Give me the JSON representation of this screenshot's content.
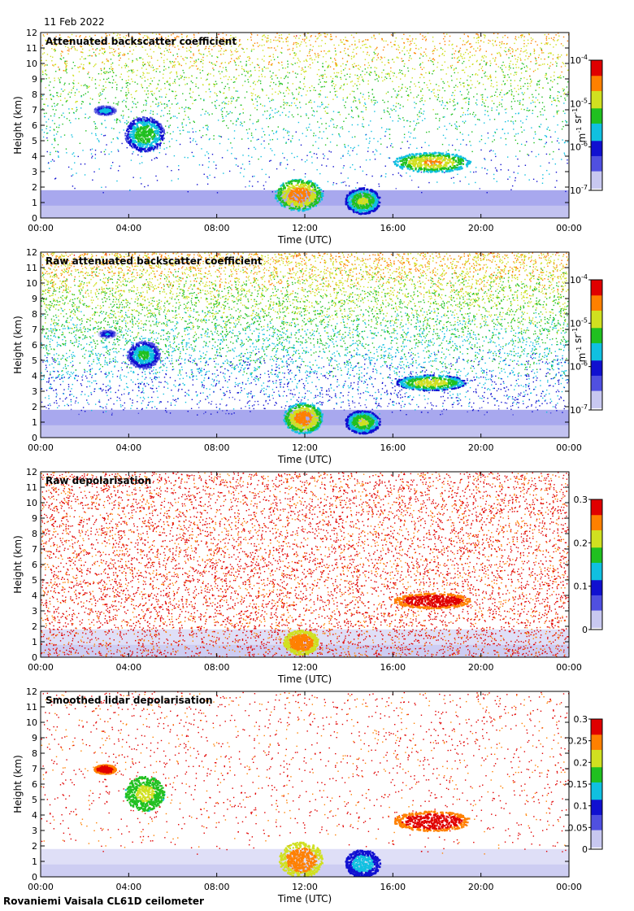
{
  "header": {
    "date": "11 Feb 2022"
  },
  "footer": {
    "site": "Rovaniemi Vaisala CL61D ceilometer"
  },
  "colors": {
    "colormap": [
      "#ffffff",
      "#c8c8f0",
      "#5050e0",
      "#1010d0",
      "#10c0e0",
      "#20c020",
      "#d0e020",
      "#ff8000",
      "#e00000",
      "#700070"
    ],
    "low_bg": "#d8d8e8",
    "depol_fill": "#800080"
  },
  "chart_data": [
    {
      "type": "heatmap",
      "title": "Attenuated backscatter coefficient",
      "xlabel": "Time (UTC)",
      "ylabel": "Height (km)",
      "x_ticks": [
        "00:00",
        "04:00",
        "08:00",
        "12:00",
        "16:00",
        "20:00",
        "00:00"
      ],
      "y_ticks": [
        "0",
        "1",
        "2",
        "3",
        "4",
        "5",
        "6",
        "7",
        "8",
        "9",
        "10",
        "11",
        "12"
      ],
      "ylim": [
        0,
        12
      ],
      "xlim_hours": [
        0,
        24
      ],
      "colorbar": {
        "scale": "log",
        "labels": [
          "10-7",
          "10-6",
          "10-5",
          "10-4"
        ],
        "unit_label": "m-1 sr-1"
      },
      "features": [
        {
          "name": "cloud",
          "t": [
            2.4,
            3.4
          ],
          "h": [
            6.7,
            7.3
          ],
          "level": 0.55
        },
        {
          "name": "cloud",
          "t": [
            3.8,
            5.6
          ],
          "h": [
            4.3,
            6.6
          ],
          "level": 0.65
        },
        {
          "name": "cloud",
          "t": [
            16.0,
            19.5
          ],
          "h": [
            3.0,
            4.3
          ],
          "level": 0.8
        },
        {
          "name": "cloud",
          "t": [
            10.6,
            12.8
          ],
          "h": [
            0.5,
            2.6
          ],
          "level": 0.85
        },
        {
          "name": "cloud",
          "t": [
            13.8,
            15.4
          ],
          "h": [
            0.3,
            2.0
          ],
          "level": 0.7
        }
      ],
      "noise_density": 0.5
    },
    {
      "type": "heatmap",
      "title": "Raw attenuated backscatter coefficient",
      "xlabel": "Time (UTC)",
      "ylabel": "Height (km)",
      "x_ticks": [
        "00:00",
        "04:00",
        "08:00",
        "12:00",
        "16:00",
        "20:00",
        "00:00"
      ],
      "y_ticks": [
        "0",
        "1",
        "2",
        "3",
        "4",
        "5",
        "6",
        "7",
        "8",
        "9",
        "10",
        "11",
        "12"
      ],
      "ylim": [
        0,
        12
      ],
      "xlim_hours": [
        0,
        24
      ],
      "colorbar": {
        "scale": "log",
        "labels": [
          "10-7",
          "10-6",
          "10-5",
          "10-4"
        ],
        "unit_label": "m-1 sr-1"
      },
      "features": [
        {
          "name": "cloud",
          "t": [
            2.6,
            3.4
          ],
          "h": [
            6.5,
            7.0
          ],
          "level": 0.5
        },
        {
          "name": "cloud",
          "t": [
            3.9,
            5.4
          ],
          "h": [
            4.5,
            6.3
          ],
          "level": 0.6
        },
        {
          "name": "cloud",
          "t": [
            16.1,
            19.3
          ],
          "h": [
            3.1,
            4.1
          ],
          "level": 0.75
        },
        {
          "name": "cloud",
          "t": [
            11.0,
            12.8
          ],
          "h": [
            0.3,
            2.3
          ],
          "level": 0.85
        },
        {
          "name": "cloud",
          "t": [
            13.8,
            15.4
          ],
          "h": [
            0.3,
            1.8
          ],
          "level": 0.7
        }
      ],
      "noise_density": 1.0
    },
    {
      "type": "heatmap",
      "title": "Raw depolarisation",
      "xlabel": "Time (UTC)",
      "ylabel": "Height (km)",
      "x_ticks": [
        "00:00",
        "04:00",
        "08:00",
        "12:00",
        "16:00",
        "20:00",
        "00:00"
      ],
      "y_ticks": [
        "0",
        "1",
        "2",
        "3",
        "4",
        "5",
        "6",
        "7",
        "8",
        "9",
        "10",
        "11",
        "12"
      ],
      "ylim": [
        0,
        12
      ],
      "xlim_hours": [
        0,
        24
      ],
      "colorbar": {
        "scale": "linear",
        "labels": [
          "0",
          "0.1",
          "0.2",
          "0.3"
        ],
        "range": [
          0,
          0.3
        ]
      },
      "features": [
        {
          "name": "cloud",
          "t": [
            16.0,
            19.5
          ],
          "h": [
            3.2,
            4.2
          ],
          "level": 0.98
        },
        {
          "name": "cloud",
          "t": [
            11.0,
            12.6
          ],
          "h": [
            0.2,
            1.8
          ],
          "level": 0.85
        }
      ],
      "noise_density": 1.0
    },
    {
      "type": "heatmap",
      "title": "Smoothed lidar depolarisation",
      "xlabel": "Time (UTC)",
      "ylabel": "Height (km)",
      "x_ticks": [
        "00:00",
        "04:00",
        "08:00",
        "12:00",
        "16:00",
        "20:00",
        "00:00"
      ],
      "y_ticks": [
        "0",
        "1",
        "2",
        "3",
        "4",
        "5",
        "6",
        "7",
        "8",
        "9",
        "10",
        "11",
        "12"
      ],
      "ylim": [
        0,
        12
      ],
      "xlim_hours": [
        0,
        24
      ],
      "colorbar": {
        "scale": "linear",
        "labels": [
          "0",
          "0.05",
          "0.1",
          "0.15",
          "0.2",
          "0.25",
          "0.3"
        ],
        "range": [
          0,
          0.3
        ]
      },
      "features": [
        {
          "name": "cloud",
          "t": [
            2.4,
            3.4
          ],
          "h": [
            6.7,
            7.3
          ],
          "level": 0.98
        },
        {
          "name": "cloud",
          "t": [
            3.8,
            5.6
          ],
          "h": [
            4.3,
            6.6
          ],
          "level": 0.7
        },
        {
          "name": "cloud",
          "t": [
            16.0,
            19.5
          ],
          "h": [
            3.0,
            4.3
          ],
          "level": 0.98
        },
        {
          "name": "cloud",
          "t": [
            10.8,
            12.8
          ],
          "h": [
            0.0,
            2.3
          ],
          "level": 0.85
        },
        {
          "name": "cloud",
          "t": [
            13.8,
            15.4
          ],
          "h": [
            0.0,
            1.8
          ],
          "level": 0.5
        }
      ],
      "noise_density": 0.2
    }
  ]
}
